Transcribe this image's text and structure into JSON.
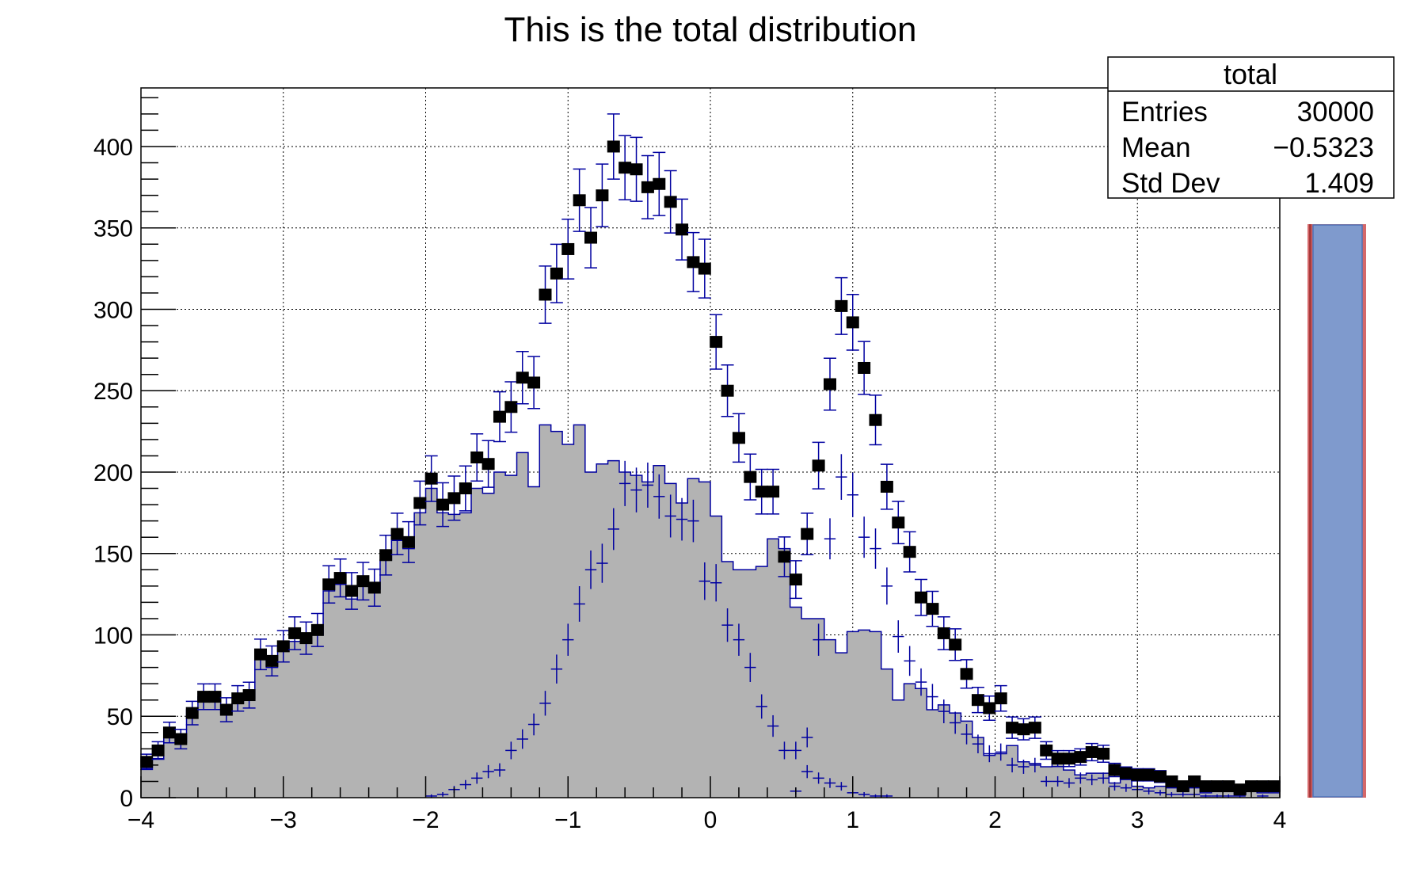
{
  "chart_data": {
    "type": "bar",
    "title": "This is the total distribution",
    "xlabel": "",
    "ylabel": "",
    "xlim": [
      -4,
      4
    ],
    "ylim": [
      0,
      436
    ],
    "bins": 100,
    "grid": true,
    "x_ticks": [
      "−4",
      "−3",
      "−2",
      "−1",
      "0",
      "1",
      "2",
      "3",
      "4"
    ],
    "y_ticks": [
      "0",
      "50",
      "100",
      "150",
      "200",
      "250",
      "300",
      "350",
      "400"
    ],
    "colors": {
      "markers": "#000000",
      "errors": "#0000a0",
      "fill": "#b3b3b3",
      "outline": "#0000a0",
      "palette_fill": "#7f9acd",
      "palette_edge": "#d4686a"
    },
    "series": [
      {
        "style": "filled-step",
        "values": [
          18,
          24,
          37,
          34,
          54,
          62,
          62,
          52,
          58,
          61,
          85,
          80,
          92,
          96,
          96,
          100,
          127,
          131,
          122,
          131,
          128,
          146,
          158,
          153,
          175,
          190,
          175,
          174,
          175,
          190,
          187,
          200,
          198,
          212,
          191,
          229,
          225,
          217,
          229,
          200,
          205,
          207,
          200,
          198,
          194,
          204,
          193,
          181,
          196,
          194,
          173,
          145,
          140,
          140,
          142,
          159,
          153,
          117,
          110,
          110,
          97,
          89,
          102,
          103,
          102,
          79,
          60,
          70,
          67,
          54,
          57,
          52,
          47,
          37,
          26,
          27,
          32,
          22,
          21,
          19,
          24,
          17,
          14,
          15,
          15,
          9,
          12,
          7,
          6,
          7,
          6,
          4,
          6,
          3,
          4,
          4,
          2,
          4,
          3,
          3
        ]
      },
      {
        "style": "markers-squares",
        "values": [
          22,
          29,
          40,
          36,
          52,
          62,
          62,
          54,
          61,
          63,
          88,
          84,
          93,
          101,
          98,
          103,
          131,
          135,
          127,
          133,
          129,
          149,
          162,
          157,
          181,
          196,
          180,
          184,
          190,
          209,
          205,
          234,
          240,
          258,
          255,
          309,
          322,
          337,
          367,
          344,
          370,
          400,
          387,
          386,
          375,
          377,
          366,
          349,
          329,
          325,
          280,
          250,
          221,
          197,
          188,
          188,
          148,
          134,
          162,
          204,
          254,
          302,
          292,
          264,
          232,
          191,
          169,
          151,
          123,
          116,
          101,
          94,
          76,
          60,
          55,
          61,
          43,
          42,
          43,
          29,
          24,
          24,
          25,
          28,
          27,
          17,
          15,
          14,
          14,
          13,
          10,
          7,
          10,
          7,
          7,
          7,
          5,
          7,
          7,
          7
        ]
      },
      {
        "style": "crosses",
        "values": [
          0,
          0,
          0,
          0,
          0,
          0,
          0,
          0,
          0,
          0,
          0,
          0,
          0,
          0,
          0,
          0,
          0,
          0,
          0,
          0,
          0,
          0,
          0,
          0,
          0,
          1,
          2,
          5,
          8,
          12,
          16,
          17,
          29,
          36,
          45,
          58,
          79,
          97,
          119,
          140,
          144,
          165,
          193,
          189,
          192,
          185,
          173,
          171,
          170,
          133,
          132,
          106,
          97,
          80,
          56,
          44,
          29,
          29,
          16,
          12,
          9,
          7,
          3,
          2,
          1,
          1,
          0,
          0,
          0,
          0,
          0,
          0,
          0,
          0,
          0,
          0,
          0,
          0,
          0,
          0,
          0,
          0,
          0,
          0,
          0,
          0,
          0,
          0,
          0,
          0,
          0,
          0,
          0,
          0,
          0,
          0,
          0,
          0,
          0,
          0
        ]
      },
      {
        "style": "crosses",
        "values": [
          0,
          0,
          0,
          0,
          0,
          0,
          0,
          0,
          0,
          0,
          0,
          0,
          0,
          0,
          0,
          0,
          0,
          0,
          0,
          0,
          0,
          0,
          0,
          0,
          0,
          0,
          0,
          0,
          0,
          0,
          0,
          0,
          0,
          0,
          0,
          0,
          0,
          0,
          0,
          0,
          0,
          0,
          0,
          0,
          0,
          0,
          0,
          0,
          0,
          0,
          0,
          0,
          0,
          0,
          0,
          0,
          0,
          4,
          37,
          97,
          159,
          197,
          186,
          160,
          153,
          130,
          99,
          84,
          71,
          62,
          53,
          46,
          39,
          33,
          27,
          28,
          20,
          19,
          20,
          10,
          10,
          9,
          12,
          11,
          12,
          7,
          6,
          5,
          4,
          3,
          2,
          2,
          2,
          1,
          1,
          1,
          1,
          0,
          1,
          0
        ]
      }
    ]
  },
  "stats_box": {
    "title": "total",
    "rows": [
      {
        "label": "Entries",
        "value": "30000"
      },
      {
        "label": "Mean",
        "value": "−0.5323"
      },
      {
        "label": "Std Dev",
        "value": "1.409"
      }
    ]
  }
}
